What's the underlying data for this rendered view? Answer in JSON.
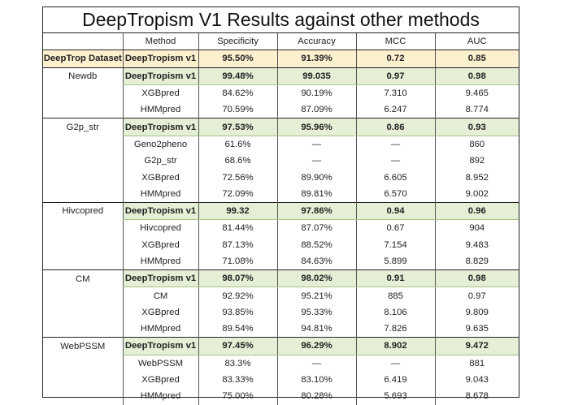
{
  "title": "DeepTropism V1 Results against other methods",
  "headers": [
    "",
    "Method",
    "Specificity",
    "Accuracy",
    "MCC",
    "AUC"
  ],
  "groups": [
    {
      "dataset": "DeepTrop Dataset",
      "rows": [
        [
          "DeepTropism v1",
          "95.50%",
          "91.39%",
          "0.72",
          "0.85"
        ]
      ]
    },
    {
      "dataset": "Newdb",
      "rows": [
        [
          "DeepTropism v1",
          "99.48%",
          "99.035",
          "0.97",
          "0.98"
        ],
        [
          "XGBpred",
          "84.62%",
          "90.19%",
          "7.310",
          "9.465"
        ],
        [
          "HMMpred",
          "70.59%",
          "87.09%",
          "6.247",
          "8.774"
        ]
      ]
    },
    {
      "dataset": "G2p_str",
      "rows": [
        [
          "DeepTropism v1",
          "97.53%",
          "95.96%",
          "0.86",
          "0.93"
        ],
        [
          "Geno2pheno",
          "61.6%",
          "—",
          "—",
          "860"
        ],
        [
          "G2p_str",
          "68.6%",
          "—",
          "—",
          "892"
        ],
        [
          "XGBpred",
          "72.56%",
          "89.90%",
          "6.605",
          "8.952"
        ],
        [
          "HMMpred",
          "72.09%",
          "89.81%",
          "6.570",
          "9.002"
        ]
      ]
    },
    {
      "dataset": "Hivcopred",
      "rows": [
        [
          "DeepTropism v1",
          "99.32",
          "97.86%",
          "0.94",
          "0.96"
        ],
        [
          "Hivcopred",
          "81.44%",
          "87.07%",
          "0.67",
          "904"
        ],
        [
          "XGBpred",
          "87.13%",
          "88.52%",
          "7.154",
          "9.483"
        ],
        [
          "HMMpred",
          "71.08%",
          "84.63%",
          "5.899",
          "8.829"
        ]
      ]
    },
    {
      "dataset": "CM",
      "rows": [
        [
          "DeepTropism v1",
          "98.07%",
          "98.02%",
          "0.91",
          "0.98"
        ],
        [
          "CM",
          "92.92%",
          "95.21%",
          "885",
          "0.97"
        ],
        [
          "XGBpred",
          "93.85%",
          "95.33%",
          "8.106",
          "9.809"
        ],
        [
          "HMMpred",
          "89.54%",
          "94.81%",
          "7.826",
          "9.635"
        ]
      ]
    },
    {
      "dataset": "WebPSSM",
      "rows": [
        [
          "DeepTropism v1",
          "97.45%",
          "96.29%",
          "8.902",
          "9.472"
        ],
        [
          "WebPSSM",
          "83.3%",
          "—",
          "—",
          "881"
        ],
        [
          "XGBpred",
          "83.33%",
          "83.10%",
          "6.419",
          "9.043"
        ],
        [
          "HMMpred",
          "75.00%",
          "80.28%",
          "5.693",
          "8.678"
        ]
      ]
    }
  ]
}
